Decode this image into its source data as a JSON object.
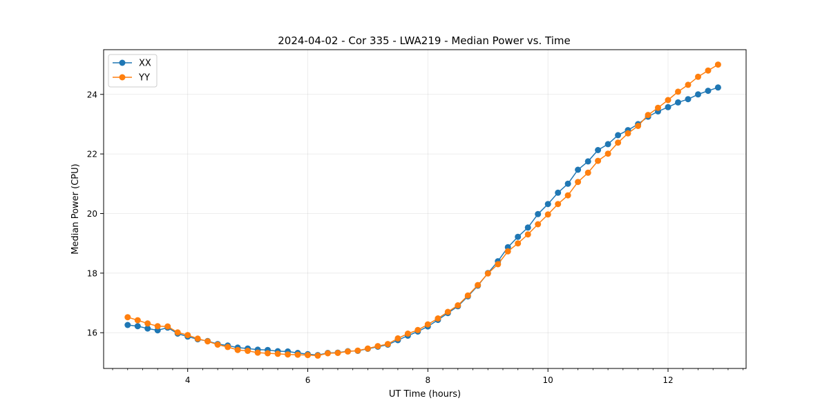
{
  "chart_data": {
    "type": "line",
    "title": "2024-04-02 - Cor 335 - LWA219 - Median Power vs. Time",
    "xlabel": "UT Time (hours)",
    "ylabel": "Median Power (CPU)",
    "xlim": [
      2.6,
      13.3
    ],
    "ylim": [
      14.8,
      25.5
    ],
    "xticks": [
      4,
      6,
      8,
      10,
      12
    ],
    "xtick_labels": [
      "4",
      "6",
      "8",
      "10",
      "12"
    ],
    "yticks": [
      16,
      18,
      20,
      22,
      24
    ],
    "ytick_labels": [
      "16",
      "18",
      "20",
      "22",
      "24"
    ],
    "grid": true,
    "legend_position": "top-left",
    "x": [
      3.0,
      3.167,
      3.333,
      3.5,
      3.667,
      3.833,
      4.0,
      4.167,
      4.333,
      4.5,
      4.667,
      4.833,
      5.0,
      5.167,
      5.333,
      5.5,
      5.667,
      5.833,
      6.0,
      6.167,
      6.333,
      6.5,
      6.667,
      6.833,
      7.0,
      7.167,
      7.333,
      7.5,
      7.667,
      7.833,
      8.0,
      8.167,
      8.333,
      8.5,
      8.667,
      8.833,
      9.0,
      9.167,
      9.333,
      9.5,
      9.667,
      9.833,
      10.0,
      10.167,
      10.333,
      10.5,
      10.667,
      10.833,
      11.0,
      11.167,
      11.333,
      11.5,
      11.667,
      11.833,
      12.0,
      12.167,
      12.333,
      12.5,
      12.667,
      12.833
    ],
    "series": [
      {
        "name": "XX",
        "color": "#1f77b4",
        "values": [
          16.26,
          16.22,
          16.14,
          16.08,
          16.17,
          15.97,
          15.87,
          15.78,
          15.72,
          15.62,
          15.57,
          15.5,
          15.47,
          15.43,
          15.42,
          15.38,
          15.37,
          15.32,
          15.28,
          15.25,
          15.32,
          15.33,
          15.38,
          15.39,
          15.46,
          15.53,
          15.6,
          15.75,
          15.9,
          16.04,
          16.21,
          16.43,
          16.66,
          16.89,
          17.22,
          17.58,
          18.0,
          18.4,
          18.87,
          19.22,
          19.53,
          19.98,
          20.32,
          20.7,
          21.0,
          21.47,
          21.75,
          22.13,
          22.33,
          22.63,
          22.8,
          23.0,
          23.25,
          23.43,
          23.57,
          23.73,
          23.84,
          24.0,
          24.12,
          24.23
        ]
      },
      {
        "name": "YY",
        "color": "#ff7f0e",
        "values": [
          16.52,
          16.42,
          16.31,
          16.22,
          16.21,
          16.01,
          15.92,
          15.8,
          15.71,
          15.6,
          15.52,
          15.42,
          15.39,
          15.33,
          15.31,
          15.29,
          15.27,
          15.26,
          15.25,
          15.23,
          15.31,
          15.32,
          15.37,
          15.4,
          15.47,
          15.55,
          15.62,
          15.81,
          15.97,
          16.09,
          16.28,
          16.48,
          16.7,
          16.92,
          17.25,
          17.6,
          17.99,
          18.3,
          18.73,
          19.0,
          19.3,
          19.64,
          19.97,
          20.32,
          20.61,
          21.06,
          21.37,
          21.77,
          22.01,
          22.38,
          22.69,
          22.94,
          23.31,
          23.55,
          23.81,
          24.09,
          24.32,
          24.59,
          24.8,
          25.0
        ]
      }
    ]
  }
}
